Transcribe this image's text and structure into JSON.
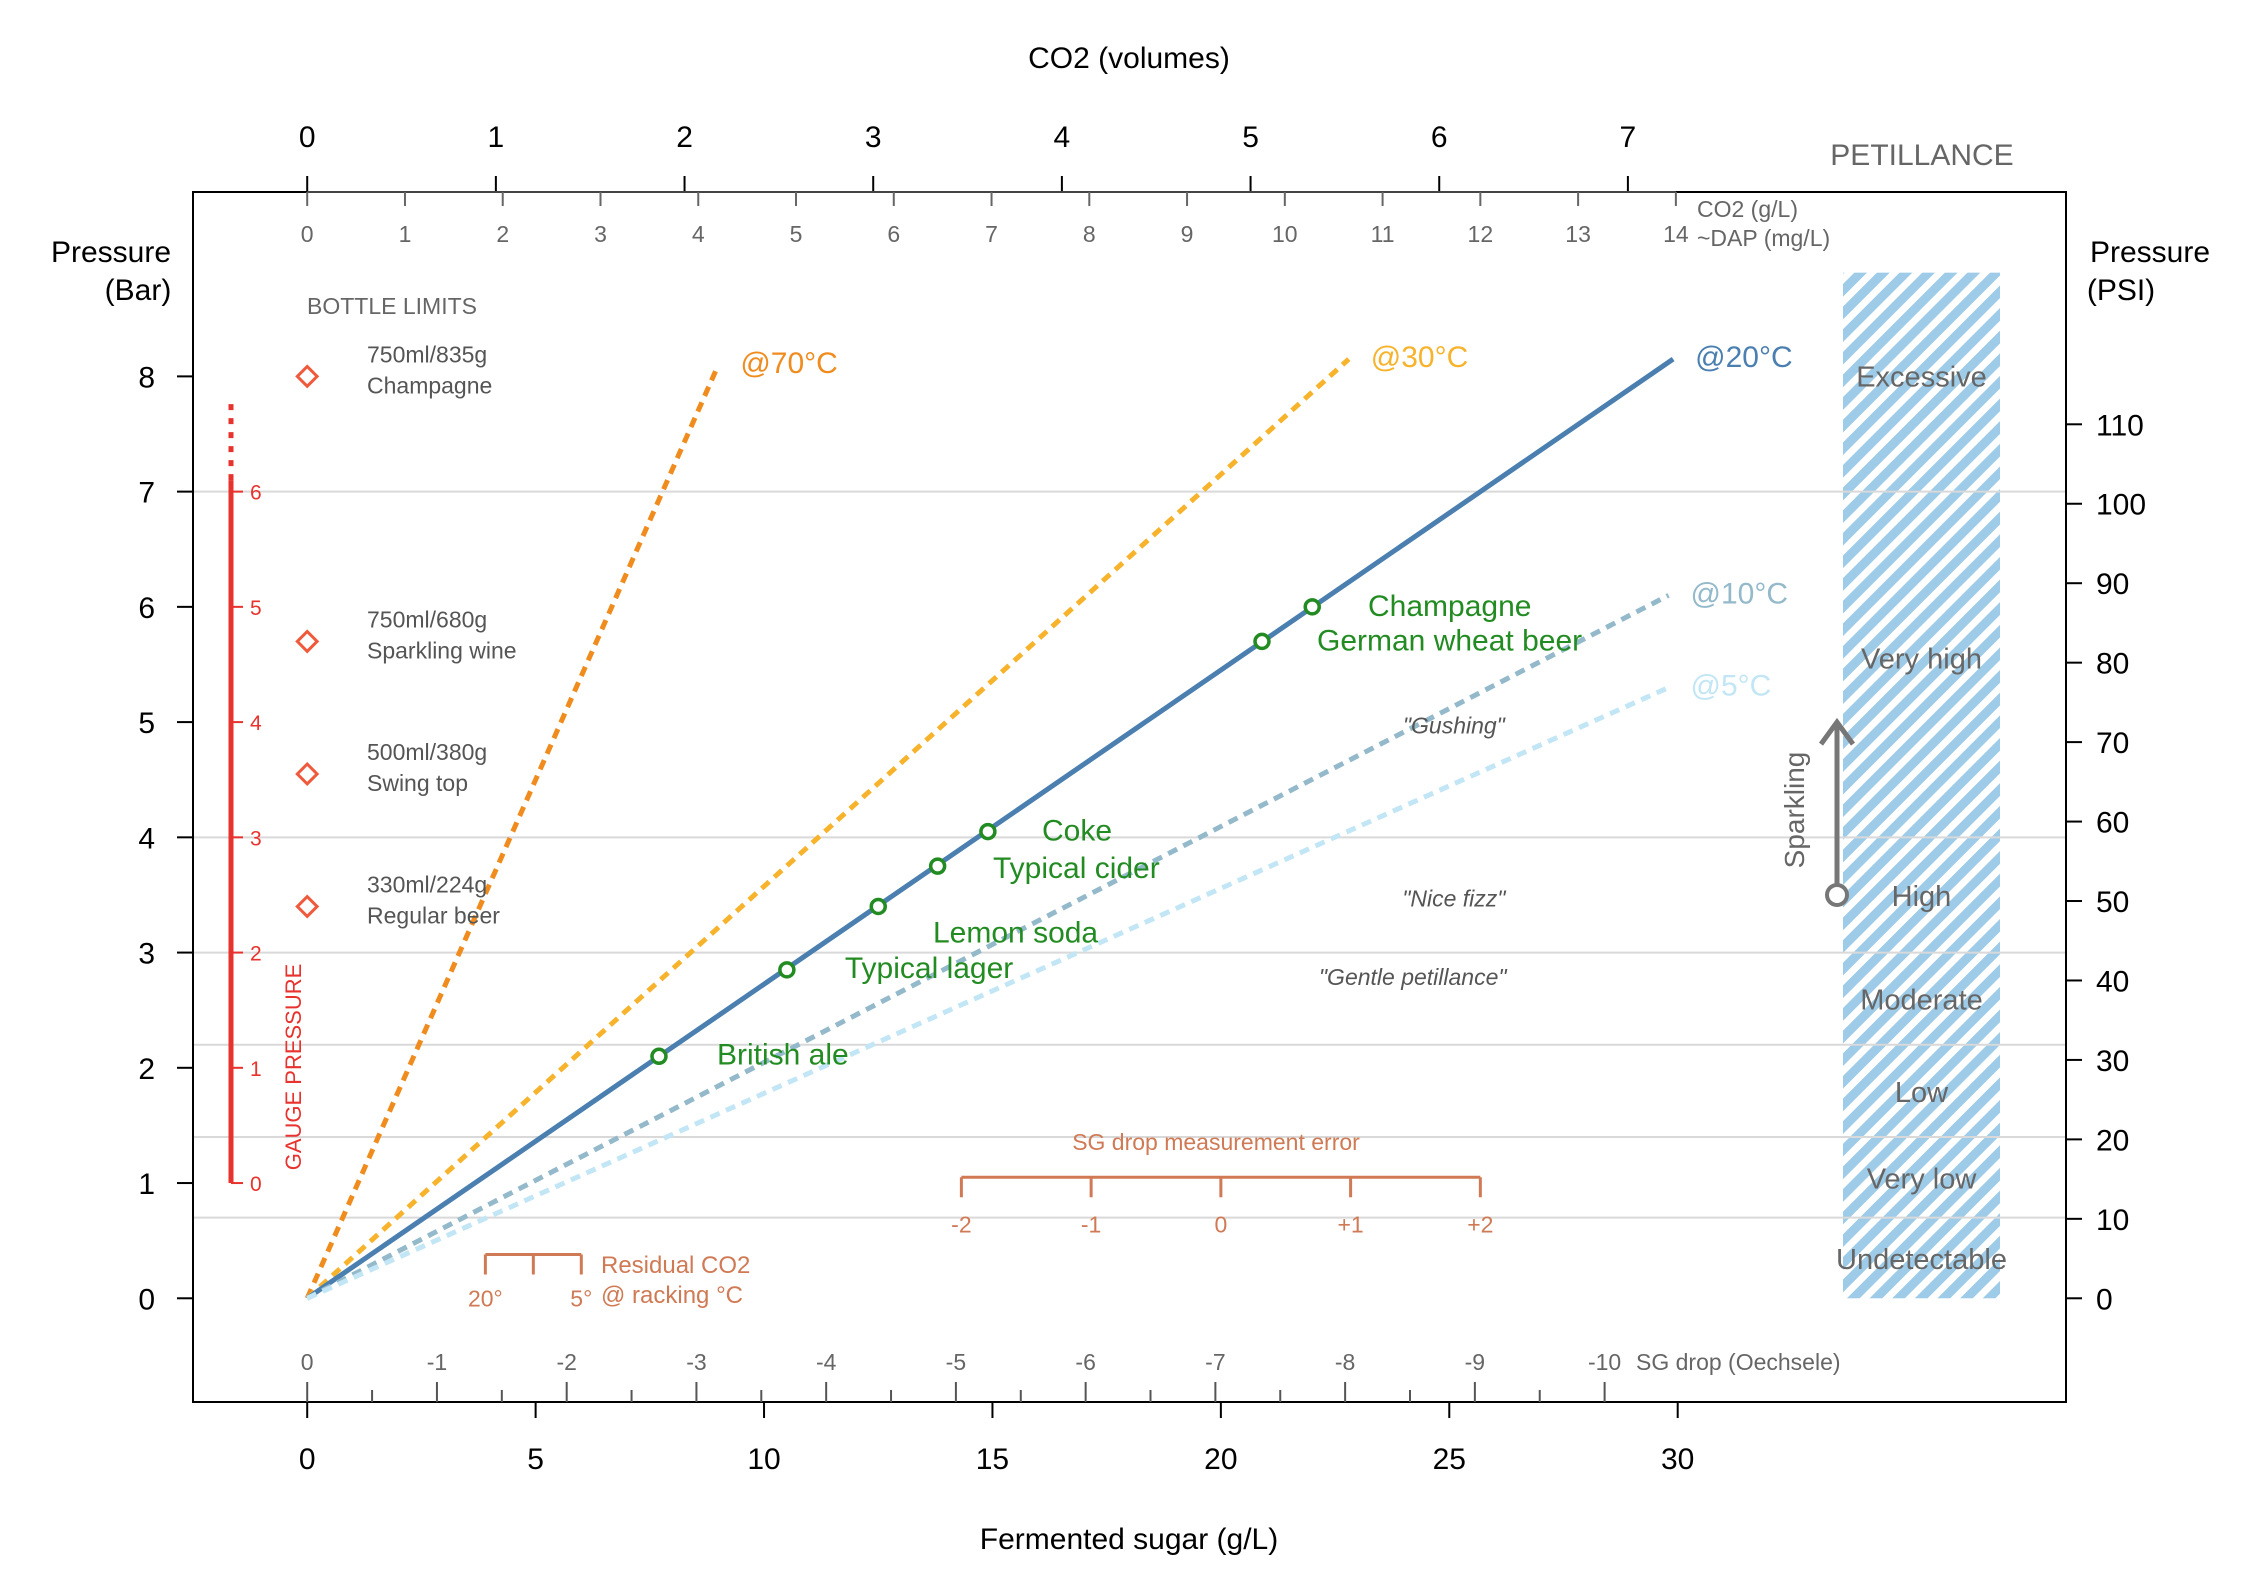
{
  "chart_data": {
    "type": "line",
    "labels": {
      "top_title": "CO2 (volumes)",
      "bottom_title": "Fermented sugar (g/L)",
      "left_title_1": "Pressure",
      "left_title_2": "(Bar)",
      "right_title_1": "Pressure",
      "right_title_2": "(PSI)",
      "petillance": "PETILLANCE",
      "co2_gl": "CO2 (g/L)",
      "dap": "~DAP (mg/L)",
      "sg_drop": "SG drop (Oechsele)",
      "bottle_limits": "BOTTLE LIMITS",
      "gauge_pressure": "GAUGE PRESSURE",
      "sparkling": "Sparkling",
      "sg_error": "SG drop measurement error",
      "residual_1": "Residual CO2",
      "residual_2": "@ racking °C"
    },
    "axes": {
      "x": {
        "title": "Fermented sugar (g/L)",
        "range": [
          -2.5,
          38.5
        ],
        "ticks": [
          "0",
          "5",
          "10",
          "15",
          "20",
          "25",
          "30"
        ],
        "tick_values": [
          0,
          5,
          10,
          15,
          20,
          25,
          30
        ]
      },
      "y_left": {
        "title": "Pressure (Bar)",
        "range": [
          -0.9,
          9.6
        ],
        "ticks": [
          "0",
          "1",
          "2",
          "3",
          "4",
          "5",
          "6",
          "7",
          "8"
        ],
        "tick_values": [
          0,
          1,
          2,
          3,
          4,
          5,
          6,
          7,
          8
        ]
      },
      "y_right": {
        "title": "Pressure (PSI)",
        "ticks": [
          "0",
          "10",
          "20",
          "30",
          "40",
          "50",
          "60",
          "70",
          "80",
          "90",
          "100",
          "110"
        ],
        "tick_values": [
          0,
          10,
          20,
          30,
          40,
          50,
          60,
          70,
          80,
          90,
          100,
          110
        ]
      },
      "co2_volumes": {
        "ticks": [
          "0",
          "1",
          "2",
          "3",
          "4",
          "5",
          "6",
          "7"
        ],
        "sugar_per_volume": 4.13
      },
      "co2_gl": {
        "ticks": [
          "0",
          "1",
          "2",
          "3",
          "4",
          "5",
          "6",
          "7",
          "8",
          "9",
          "10",
          "11",
          "12",
          "13",
          "14"
        ],
        "sugar_per_unit": 2.14
      },
      "sg_drop": {
        "ticks": [
          "0",
          "-1",
          "-2",
          "-3",
          "-4",
          "-5",
          "-6",
          "-7",
          "-8",
          "-9",
          "-10"
        ],
        "sugar_per_unit": 2.84
      },
      "gauge": {
        "ticks": [
          "0",
          "1",
          "2",
          "3",
          "4",
          "5",
          "6"
        ],
        "bar_offset": 1
      }
    },
    "series": [
      {
        "name": "@70°C",
        "color": "#f08c1e",
        "dash": true,
        "x": [
          0,
          9.0
        ],
        "y": [
          0,
          8.1
        ]
      },
      {
        "name": "@30°C",
        "color": "#f7b32b",
        "dash": true,
        "x": [
          0,
          22.8
        ],
        "y": [
          0,
          8.15
        ]
      },
      {
        "name": "@20°C",
        "color": "#4a7fb0",
        "dash": false,
        "x": [
          0,
          29.9
        ],
        "y": [
          0,
          8.15
        ]
      },
      {
        "name": "@10°C",
        "color": "#93b9cb",
        "dash": true,
        "x": [
          0,
          29.8
        ],
        "y": [
          0,
          6.1
        ]
      },
      {
        "name": "@5°C",
        "color": "#c2e6f5",
        "dash": true,
        "x": [
          0,
          29.8
        ],
        "y": [
          0,
          5.3
        ]
      }
    ],
    "beverages": [
      {
        "name": "British ale",
        "x": 7.7,
        "y": 2.1
      },
      {
        "name": "Typical lager",
        "x": 10.5,
        "y": 2.85
      },
      {
        "name": "Lemon soda",
        "x": 12.5,
        "y": 3.4
      },
      {
        "name": "Typical cider",
        "x": 13.8,
        "y": 3.75
      },
      {
        "name": "Coke",
        "x": 14.9,
        "y": 4.05
      },
      {
        "name": "German wheat beer",
        "x": 20.9,
        "y": 5.7
      },
      {
        "name": "Champagne",
        "x": 22.0,
        "y": 6.0
      }
    ],
    "annotations": [
      {
        "text": "\"Gushing\"",
        "x": 25.1,
        "y": 4.9
      },
      {
        "text": "\"Nice fizz\"",
        "x": 25.1,
        "y": 3.4
      },
      {
        "text": "\"Gentle petillance\"",
        "x": 24.2,
        "y": 2.72
      }
    ],
    "bottle_limits": [
      {
        "line1": "750ml/835g",
        "line2": "Champagne",
        "y": 8.0
      },
      {
        "line1": "750ml/680g",
        "line2": "Sparkling wine",
        "y": 5.7
      },
      {
        "line1": "500ml/380g",
        "line2": "Swing top",
        "y": 4.55
      },
      {
        "line1": "330ml/224g",
        "line2": "Regular beer",
        "y": 3.4
      }
    ],
    "petillance_bands": [
      {
        "name": "Excessive",
        "from": 7.0,
        "to": 8.9
      },
      {
        "name": "Very high",
        "from": 4.0,
        "to": 7.0
      },
      {
        "name": "High",
        "from": 3.0,
        "to": 4.0
      },
      {
        "name": "Moderate",
        "from": 2.2,
        "to": 3.0
      },
      {
        "name": "Low",
        "from": 1.4,
        "to": 2.2
      },
      {
        "name": "Very low",
        "from": 0.7,
        "to": 1.4
      },
      {
        "name": "Undetectable",
        "from": 0.0,
        "to": 0.7
      }
    ],
    "gridlines_bar": [
      0.7,
      1.4,
      2.2,
      3.0,
      4.0,
      7.0
    ],
    "sg_error_scale": {
      "ticks": [
        "-2",
        "-1",
        "0",
        "+1",
        "+2"
      ],
      "center_x": 20.0,
      "step": 2.84
    },
    "residual_scale": {
      "ticks": [
        "20°",
        "5°"
      ],
      "x_from": 3.9,
      "x_to": 6.0
    },
    "colors": {
      "beverage": "#228b22",
      "gauge": "#e8322d",
      "annotation": "#d07a55",
      "band": "#9dcbe8",
      "gray": "#555555",
      "bottle": "#f05a3c"
    }
  }
}
